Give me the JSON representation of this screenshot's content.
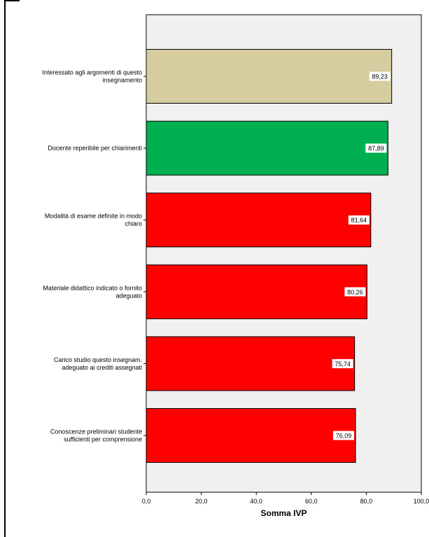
{
  "chart_data": {
    "type": "bar",
    "orientation": "horizontal",
    "categories": [
      [
        "Interessato agli argomenti di questo",
        "insegnamento"
      ],
      [
        "Docente reperibile per chiarimenti"
      ],
      [
        "Modalità di esame definite in modo",
        "chiaro"
      ],
      [
        "Materiale didattico indicato o fornito",
        "adeguato"
      ],
      [
        "Carico studio questo insegnam.",
        "adeguato ai crediti assegnati"
      ],
      [
        "Conoscenze preliminari studente",
        "sufficienti per comprensione"
      ]
    ],
    "values": [
      89.23,
      87.89,
      81.64,
      80.26,
      75.74,
      76.09
    ],
    "data_labels": [
      "89,23",
      "87,89",
      "81,64",
      "80,26",
      "75,74",
      "76,09"
    ],
    "bar_colors": [
      "#d5cc9f",
      "#00b050",
      "#ff0000",
      "#ff0000",
      "#ff0000",
      "#ff0000"
    ],
    "xlabel": "Somma IVP",
    "xlim": [
      0,
      100
    ],
    "xticks": [
      0,
      20,
      40,
      60,
      80,
      100
    ],
    "xtick_labels": [
      "0,0",
      "20,0",
      "40,0",
      "60,0",
      "80,0",
      "100,0"
    ],
    "plot_background": "#f0f0f0",
    "grid": false
  }
}
